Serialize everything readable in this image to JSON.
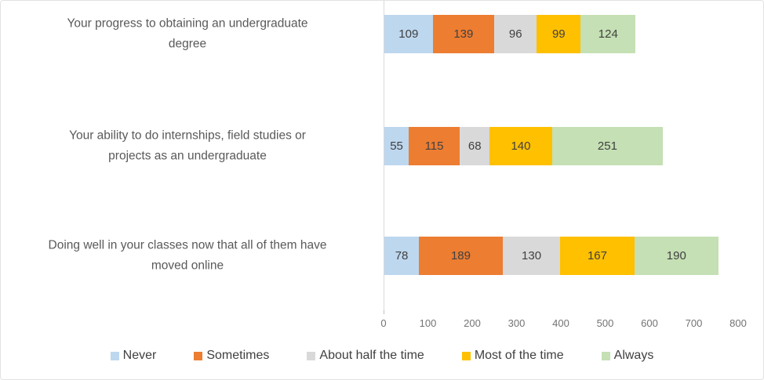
{
  "chart_data": {
    "type": "bar",
    "orientation": "horizontal",
    "stacked": true,
    "title": "",
    "xlabel": "",
    "ylabel": "",
    "grid": false,
    "legend_position": "bottom",
    "data_labels": true,
    "categories": [
      "Your progress to obtaining an undergraduate\ndegree",
      "Your ability to do internships, field studies or\nprojects as an undergraduate",
      "Doing well in your classes now that all of them have\nmoved online"
    ],
    "series": [
      {
        "name": "Never",
        "color": "#BDD7EE",
        "values": [
          109,
          55,
          78
        ]
      },
      {
        "name": "Sometimes",
        "color": "#ED7D31",
        "values": [
          139,
          115,
          189
        ]
      },
      {
        "name": "About half the time",
        "color": "#D9D9D9",
        "values": [
          96,
          68,
          130
        ]
      },
      {
        "name": "Most of the time",
        "color": "#FFC000",
        "values": [
          99,
          140,
          167
        ]
      },
      {
        "name": "Always",
        "color": "#C5E0B4",
        "values": [
          124,
          251,
          190
        ]
      }
    ],
    "x_axis": {
      "min": 0,
      "max": 800,
      "tick_interval": 100,
      "tick_labels": [
        "0",
        "100",
        "200",
        "300",
        "400",
        "500",
        "600",
        "700",
        "800"
      ]
    },
    "colors": {
      "axis_line": "#d9d9d9",
      "tick_label_text": "#737373",
      "category_label_text": "#595959",
      "data_label_text": "#404040",
      "legend_text": "#404040",
      "background": "#ffffff"
    }
  }
}
